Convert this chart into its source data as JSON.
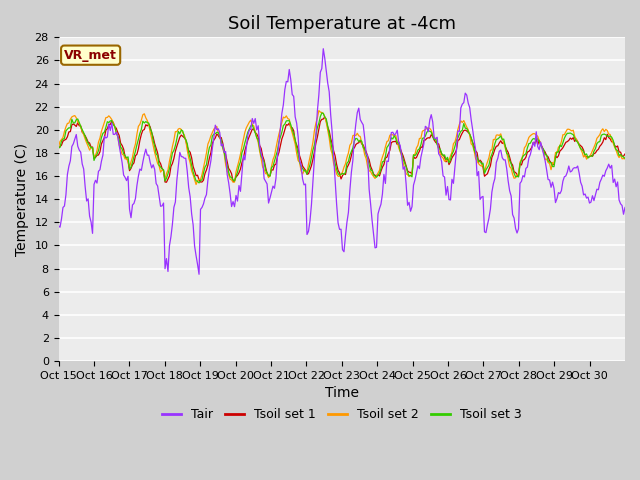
{
  "title": "Soil Temperature at -4cm",
  "xlabel": "Time",
  "ylabel": "Temperature (C)",
  "ylim": [
    0,
    28
  ],
  "yticks": [
    0,
    2,
    4,
    6,
    8,
    10,
    12,
    14,
    16,
    18,
    20,
    22,
    24,
    26,
    28
  ],
  "xtick_labels": [
    "Oct 15",
    "Oct 16",
    "Oct 17",
    "Oct 18",
    "Oct 19",
    "Oct 20",
    "Oct 21",
    "Oct 22",
    "Oct 23",
    "Oct 24",
    "Oct 25",
    "Oct 26",
    "Oct 27",
    "Oct 28",
    "Oct 29",
    "Oct 30"
  ],
  "colors": {
    "Tair": "#9933ff",
    "Tsoil1": "#cc0000",
    "Tsoil2": "#ff9900",
    "Tsoil3": "#33cc00"
  },
  "legend_labels": [
    "Tair",
    "Tsoil set 1",
    "Tsoil set 2",
    "Tsoil set 3"
  ],
  "annotation_text": "VR_met",
  "fig_bg_color": "#d0d0d0",
  "plot_bg_color": "#ececec",
  "title_fontsize": 13,
  "axis_fontsize": 10,
  "tick_fontsize": 8,
  "n_days": 16,
  "seed": 42
}
